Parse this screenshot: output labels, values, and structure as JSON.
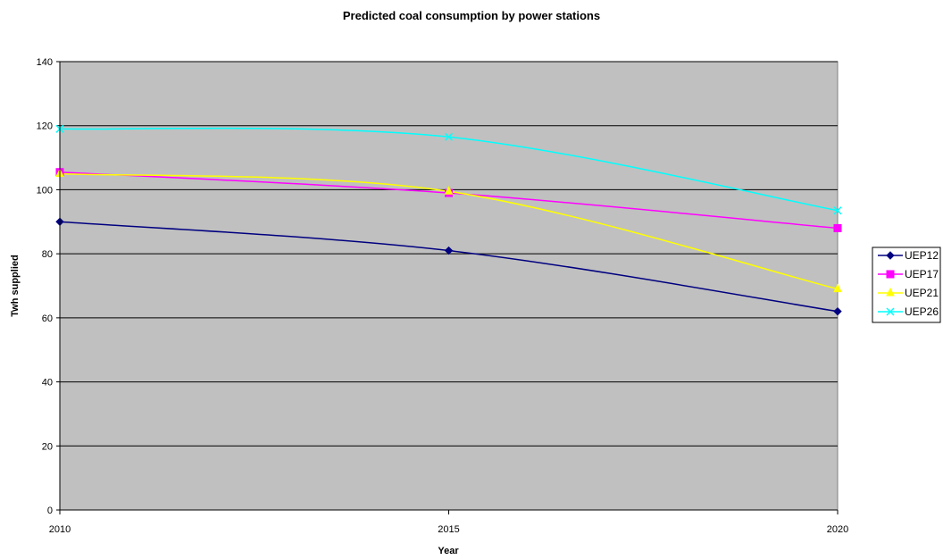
{
  "chart_data": {
    "type": "line",
    "title": "Predicted coal consumption by power stations",
    "xlabel": "Year",
    "ylabel": "Twh supplied",
    "x": [
      "2010",
      "2015",
      "2020"
    ],
    "ylim": [
      0,
      140
    ],
    "yticks": [
      0,
      20,
      40,
      60,
      80,
      100,
      120,
      140
    ],
    "grid": true,
    "legend_position": "right",
    "plot_background": "#c0c0c0",
    "series": [
      {
        "name": "UEP12",
        "values": [
          90,
          81,
          62
        ],
        "color": "#000080",
        "marker": "diamond"
      },
      {
        "name": "UEP17",
        "values": [
          105.5,
          99,
          88
        ],
        "color": "#ff00ff",
        "marker": "square"
      },
      {
        "name": "UEP21",
        "values": [
          105,
          99.5,
          69
        ],
        "color": "#ffff00",
        "marker": "triangle"
      },
      {
        "name": "UEP26",
        "values": [
          119,
          116.5,
          93.5
        ],
        "color": "#00ffff",
        "marker": "x"
      }
    ]
  }
}
